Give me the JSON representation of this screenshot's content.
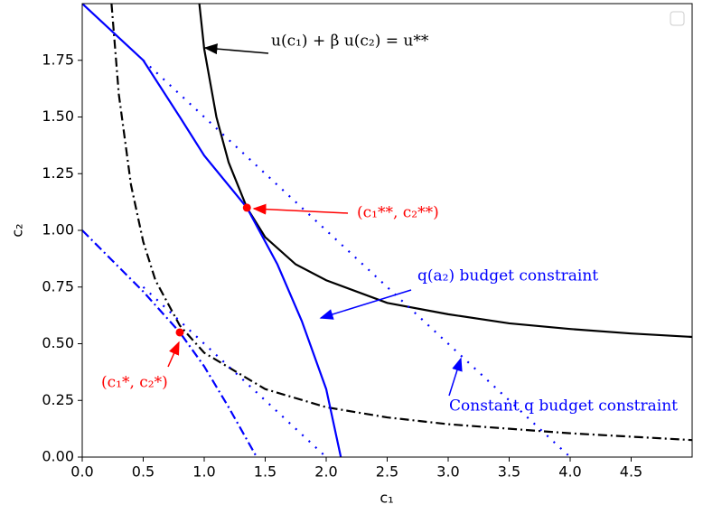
{
  "chart_data": {
    "type": "line",
    "xlabel": "c₁",
    "ylabel": "c₂",
    "xlim": [
      0,
      5
    ],
    "ylim": [
      0,
      2
    ],
    "xticks": [
      {
        "value": 0,
        "label": "0.0"
      },
      {
        "value": 0.5,
        "label": "0.5"
      },
      {
        "value": 1,
        "label": "1.0"
      },
      {
        "value": 1.5,
        "label": "1.5"
      },
      {
        "value": 2,
        "label": "2.0"
      },
      {
        "value": 2.5,
        "label": "2.5"
      },
      {
        "value": 3,
        "label": "3.0"
      },
      {
        "value": 3.5,
        "label": "3.5"
      },
      {
        "value": 4,
        "label": "4.0"
      },
      {
        "value": 4.5,
        "label": "4.5"
      }
    ],
    "yticks": [
      {
        "value": 0,
        "label": "0.00"
      },
      {
        "value": 0.25,
        "label": "0.25"
      },
      {
        "value": 0.5,
        "label": "0.50"
      },
      {
        "value": 0.75,
        "label": "0.75"
      },
      {
        "value": 1,
        "label": "1.00"
      },
      {
        "value": 1.25,
        "label": "1.25"
      },
      {
        "value": 1.5,
        "label": "1.50"
      },
      {
        "value": 1.75,
        "label": "1.75"
      }
    ],
    "series": [
      {
        "color": "#000000",
        "style": "solid",
        "x": [
          0.96,
          1.0,
          1.1,
          1.2,
          1.35,
          1.5,
          1.75,
          2.0,
          2.5,
          3.0,
          3.5,
          4.0,
          4.5,
          5.0
        ],
        "values": [
          2.0,
          1.8,
          1.5,
          1.3,
          1.1,
          0.97,
          0.85,
          0.78,
          0.68,
          0.63,
          0.59,
          0.565,
          0.545,
          0.53
        ]
      },
      {
        "color": "#000000",
        "style": "dashdot",
        "x": [
          0.24,
          0.3,
          0.4,
          0.5,
          0.6,
          0.8,
          1.0,
          1.5,
          2.0,
          2.5,
          3.0,
          4.0,
          5.0
        ],
        "values": [
          2.0,
          1.6,
          1.2,
          0.95,
          0.78,
          0.58,
          0.46,
          0.3,
          0.22,
          0.175,
          0.145,
          0.105,
          0.075
        ]
      },
      {
        "color": "#0000ff",
        "style": "solid",
        "x": [
          0,
          0.5,
          0.8,
          1.0,
          1.35,
          1.6,
          1.8,
          2.0,
          2.12
        ],
        "values": [
          2.0,
          1.75,
          1.5,
          1.33,
          1.1,
          0.85,
          0.6,
          0.3,
          0
        ]
      },
      {
        "color": "#0000ff",
        "style": "dotted",
        "x": [
          0.5,
          4.0
        ],
        "values": [
          1.75,
          0
        ]
      },
      {
        "color": "#0000ff",
        "style": "dotted",
        "x": [
          0.5,
          2.0
        ],
        "values": [
          0.75,
          0
        ]
      },
      {
        "color": "#0000ff",
        "style": "dashdot",
        "x": [
          0,
          0.5,
          0.8,
          1.0,
          1.2,
          1.43
        ],
        "values": [
          1.0,
          0.73,
          0.55,
          0.4,
          0.22,
          0
        ]
      },
      {
        "color": "#ff0000",
        "style": "marker",
        "x": [
          1.35,
          0.8
        ],
        "values": [
          1.1,
          0.55
        ]
      }
    ],
    "annotations": [
      "u(c₁) + β u(c₂) = u**",
      "(c₁**, c₂**)",
      "q(a₂) budget constraint",
      "Constant q budget constraint",
      "(c₁*, c₂*)"
    ]
  }
}
